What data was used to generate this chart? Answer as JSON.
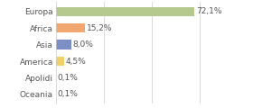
{
  "categories": [
    "Europa",
    "Africa",
    "Asia",
    "America",
    "Apolidi",
    "Oceania"
  ],
  "values": [
    72.1,
    15.2,
    8.0,
    4.5,
    0.1,
    0.1
  ],
  "labels": [
    "72,1%",
    "15,2%",
    "8,0%",
    "4,5%",
    "0,1%",
    "0,1%"
  ],
  "colors": [
    "#b5c98e",
    "#f0a870",
    "#7b8fc4",
    "#f0d068",
    "#e8e8e8",
    "#e8e8e8"
  ],
  "background_color": "#ffffff",
  "label_fontsize": 6.5,
  "tick_fontsize": 6.5,
  "xlim": [
    0,
    100
  ],
  "bar_height": 0.55,
  "figsize": [
    2.8,
    1.2
  ],
  "dpi": 100
}
